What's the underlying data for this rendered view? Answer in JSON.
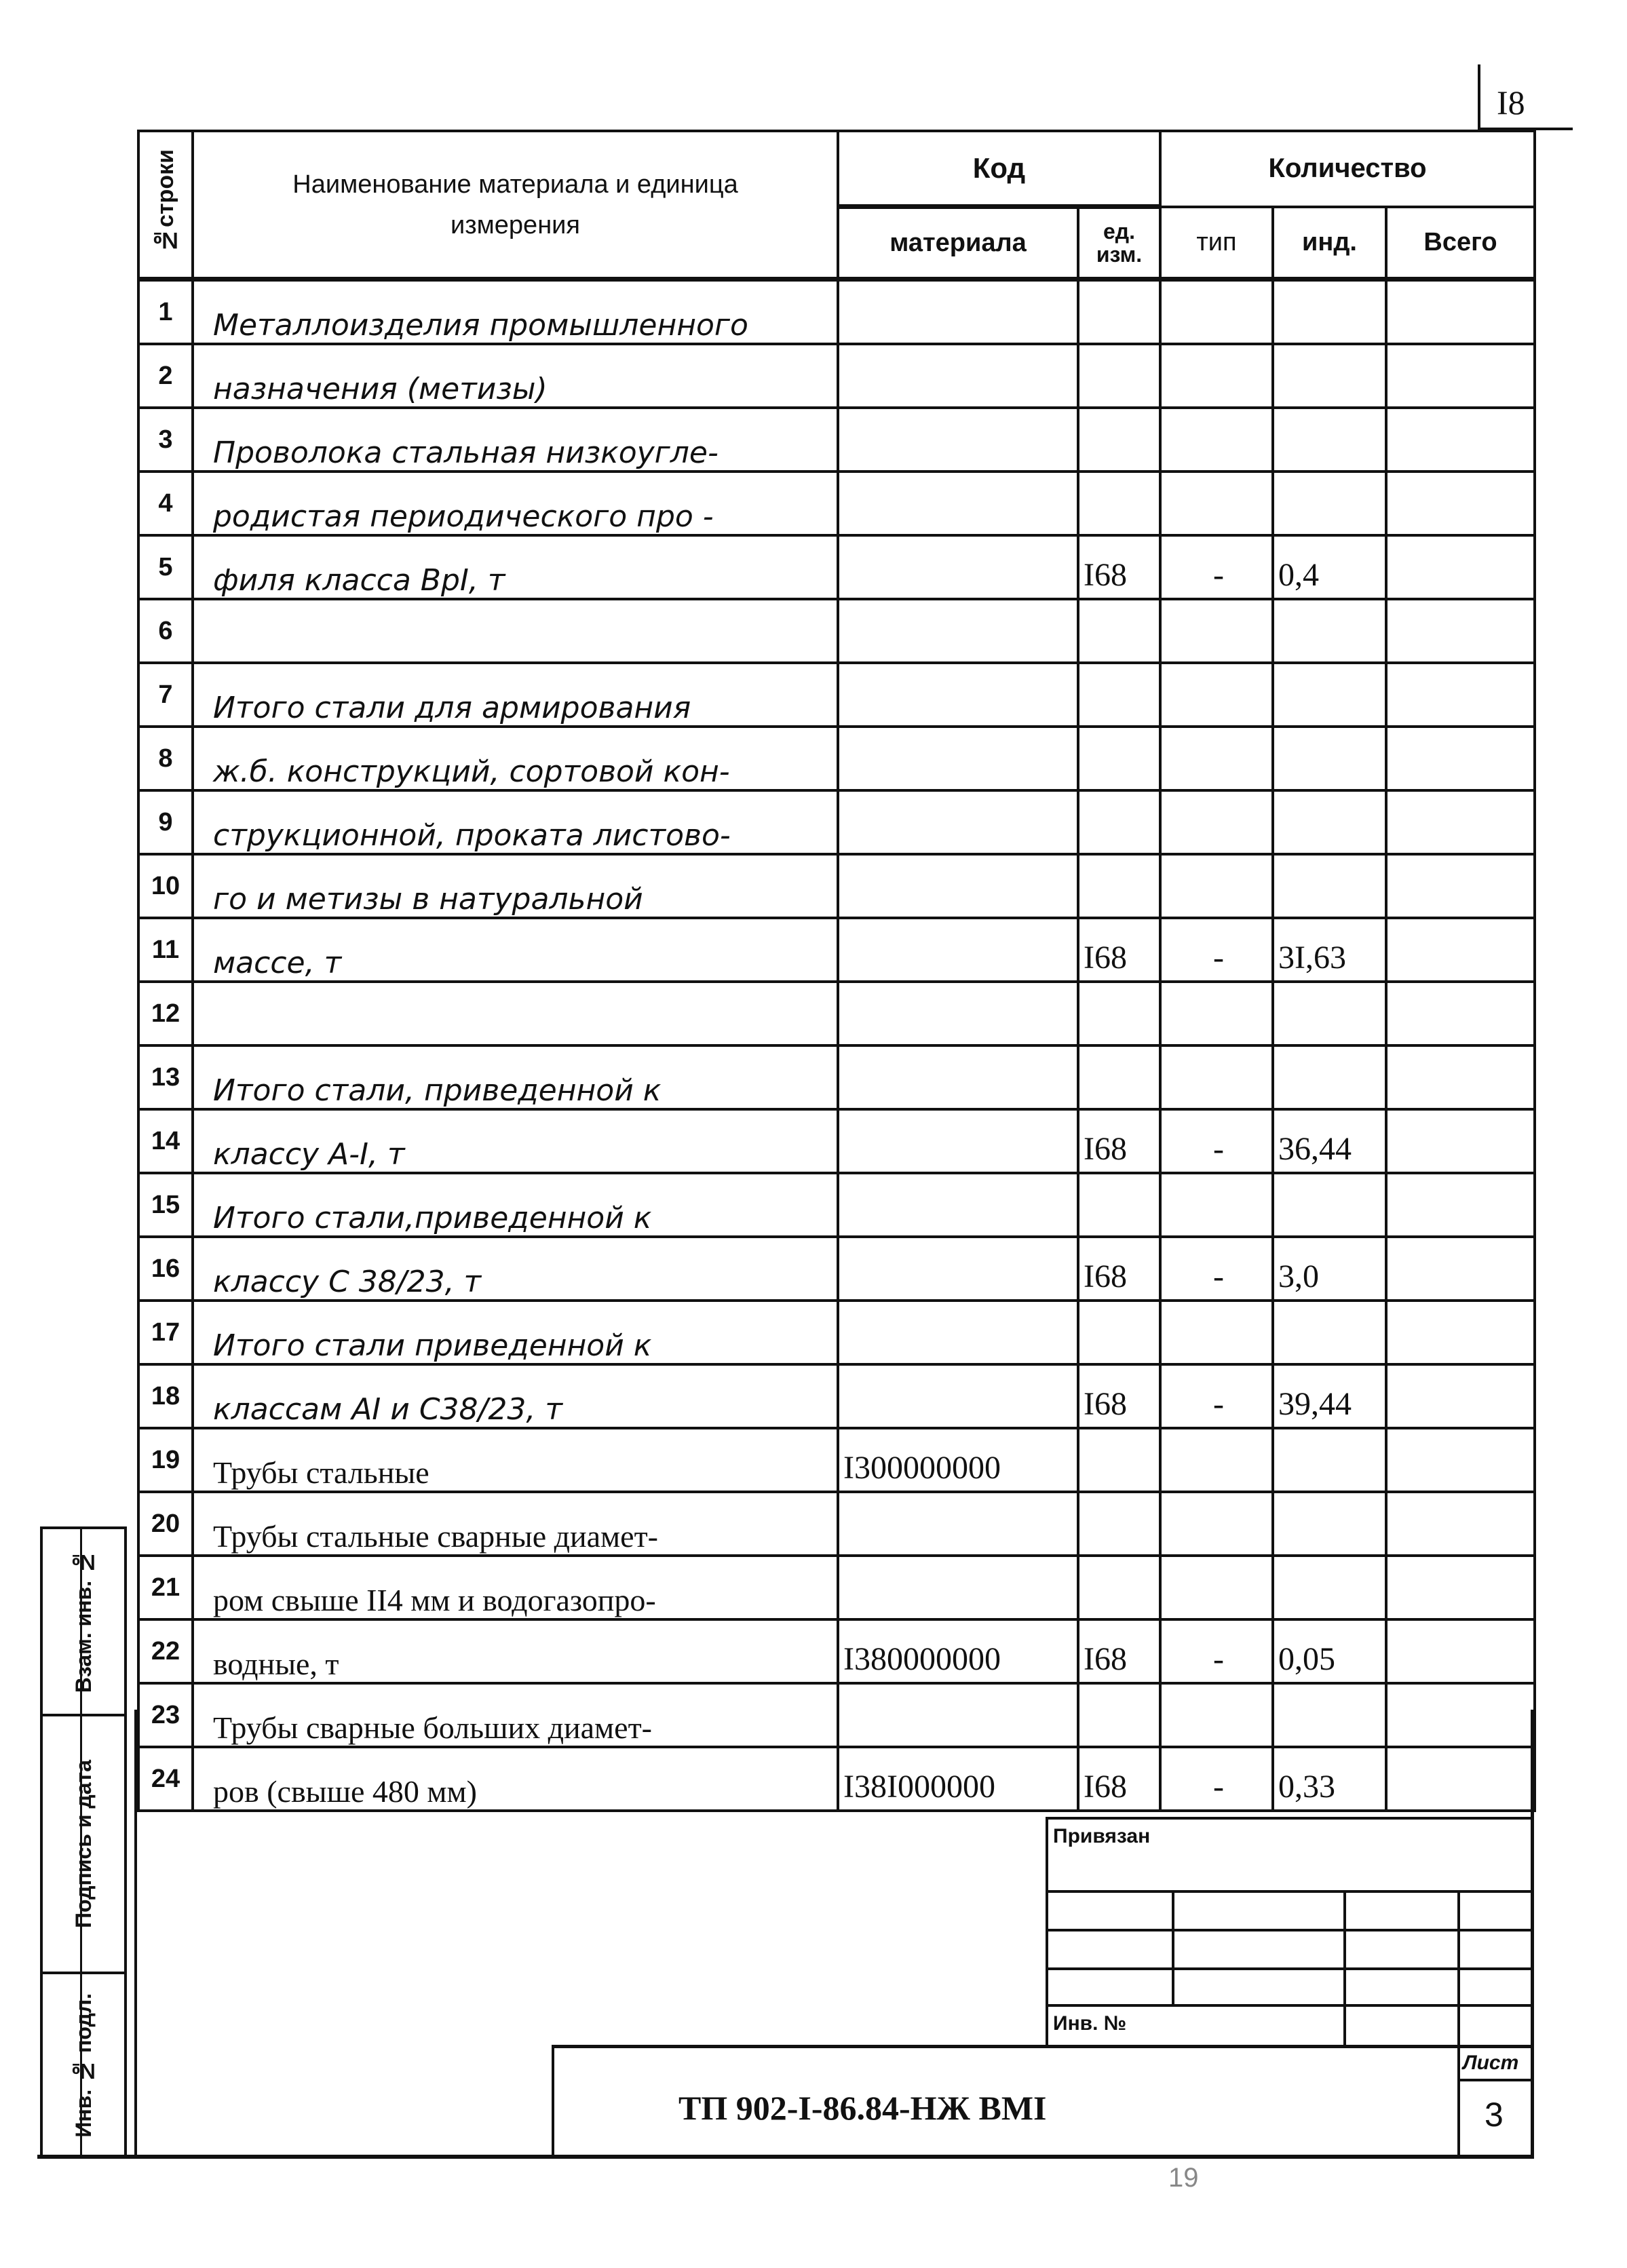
{
  "page_number_top": "I8",
  "page_number_bottom": "19",
  "header": {
    "row_number": "№строки",
    "name": "Наименование материала и единица измерения",
    "code": "Код",
    "quantity": "Количество",
    "material": "материала",
    "unit": "ед. изм.",
    "type": "тип",
    "ind": "инд.",
    "total": "Всего"
  },
  "rows": [
    {
      "n": "1",
      "name": "Металлоизделия промышленного",
      "code": "",
      "unit": "",
      "type": "",
      "ind": "",
      "total": ""
    },
    {
      "n": "2",
      "name": "назначения (метизы)",
      "code": "",
      "unit": "",
      "type": "",
      "ind": "",
      "total": ""
    },
    {
      "n": "3",
      "name": "Проволока стальная низкоугле-",
      "code": "",
      "unit": "",
      "type": "",
      "ind": "",
      "total": ""
    },
    {
      "n": "4",
      "name": "родистая периодического про -",
      "code": "",
      "unit": "",
      "type": "",
      "ind": "",
      "total": ""
    },
    {
      "n": "5",
      "name": "филя класса ВрI, т",
      "code": "",
      "unit": "I68",
      "type": "-",
      "ind": "0,4",
      "total": ""
    },
    {
      "n": "6",
      "name": "",
      "code": "",
      "unit": "",
      "type": "",
      "ind": "",
      "total": ""
    },
    {
      "n": "7",
      "name": "Итого стали для армирования",
      "code": "",
      "unit": "",
      "type": "",
      "ind": "",
      "total": ""
    },
    {
      "n": "8",
      "name": "ж.б. конструкций, сортовой кон-",
      "code": "",
      "unit": "",
      "type": "",
      "ind": "",
      "total": ""
    },
    {
      "n": "9",
      "name": "струкционной, проката листово-",
      "code": "",
      "unit": "",
      "type": "",
      "ind": "",
      "total": ""
    },
    {
      "n": "10",
      "name": "го и метизы в натуральной",
      "code": "",
      "unit": "",
      "type": "",
      "ind": "",
      "total": ""
    },
    {
      "n": "11",
      "name": "массе, т",
      "code": "",
      "unit": "I68",
      "type": "-",
      "ind": "3I,63",
      "total": ""
    },
    {
      "n": "12",
      "name": "",
      "code": "",
      "unit": "",
      "type": "",
      "ind": "",
      "total": ""
    },
    {
      "n": "13",
      "name": "Итого стали, приведенной к",
      "code": "",
      "unit": "",
      "type": "",
      "ind": "",
      "total": ""
    },
    {
      "n": "14",
      "name": "классу А-I, т",
      "code": "",
      "unit": "I68",
      "type": "-",
      "ind": "36,44",
      "total": ""
    },
    {
      "n": "15",
      "name": "Итого стали,приведенной к",
      "code": "",
      "unit": "",
      "type": "",
      "ind": "",
      "total": ""
    },
    {
      "n": "16",
      "name": "классу С 38/23, т",
      "code": "",
      "unit": "I68",
      "type": "-",
      "ind": "3,0",
      "total": ""
    },
    {
      "n": "17",
      "name": "Итого стали приведенной к",
      "code": "",
      "unit": "",
      "type": "",
      "ind": "",
      "total": ""
    },
    {
      "n": "18",
      "name": "классам АI и С38/23, т",
      "code": "",
      "unit": "I68",
      "type": "-",
      "ind": "39,44",
      "total": ""
    },
    {
      "n": "19",
      "name": "Трубы стальные",
      "code": "I300000000",
      "unit": "",
      "type": "",
      "ind": "",
      "total": "",
      "typed": true
    },
    {
      "n": "20",
      "name": "Трубы стальные сварные диамет-",
      "code": "",
      "unit": "",
      "type": "",
      "ind": "",
      "total": "",
      "typed": true
    },
    {
      "n": "21",
      "name": "ром свыше II4 мм и водогазопро-",
      "code": "",
      "unit": "",
      "type": "",
      "ind": "",
      "total": "",
      "typed": true
    },
    {
      "n": "22",
      "name": "водные, т",
      "code": "I380000000",
      "unit": "I68",
      "type": "-",
      "ind": "0,05",
      "total": "",
      "typed": true
    },
    {
      "n": "23",
      "name": "Трубы сварные больших диамет-",
      "code": "",
      "unit": "",
      "type": "",
      "ind": "",
      "total": "",
      "typed": true
    },
    {
      "n": "24",
      "name": "ров (свыше 480 мм)",
      "code": "I38I000000",
      "unit": "I68",
      "type": "-",
      "ind": "0,33",
      "total": "",
      "typed": true
    }
  ],
  "side_stamp": {
    "replaced_inv": "Взам. инв. №",
    "signature_date": "Подпись и дата",
    "inv_original": "Инв. № подл."
  },
  "title_block": {
    "linked": "Привязан",
    "inv_no": "Инв. №",
    "document_code": "ТП 902-I-86.84-НЖ ВМI",
    "sheet_label": "Лист",
    "sheet_number": "3"
  }
}
